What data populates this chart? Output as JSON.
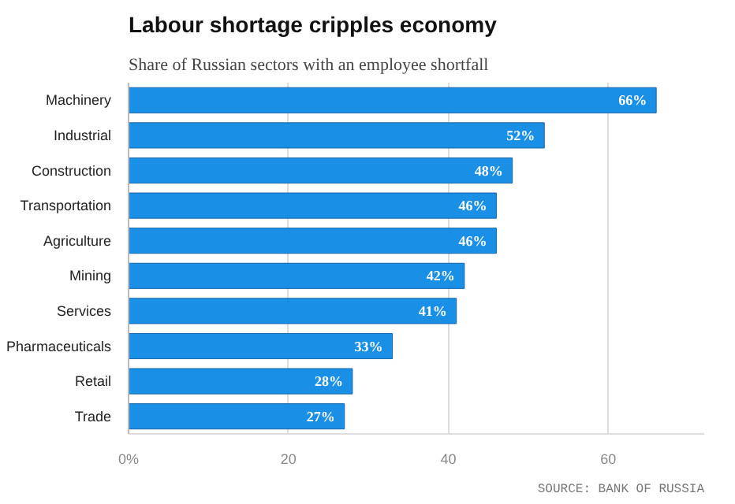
{
  "chart_data": {
    "type": "bar",
    "orientation": "horizontal",
    "title": "Labour shortage cripples economy",
    "subtitle": "Share of Russian sectors with an employee shortfall",
    "categories": [
      "Machinery",
      "Industrial",
      "Construction",
      "Transportation",
      "Agriculture",
      "Mining",
      "Services",
      "Pharmaceuticals",
      "Retail",
      "Trade"
    ],
    "values": [
      66,
      52,
      48,
      46,
      46,
      42,
      41,
      33,
      28,
      27
    ],
    "value_labels": [
      "66%",
      "52%",
      "48%",
      "46%",
      "46%",
      "42%",
      "41%",
      "33%",
      "28%",
      "27%"
    ],
    "color": "#1a8fe6",
    "xlim": [
      0,
      72
    ],
    "xticks": [
      {
        "value": 0,
        "label": "0%"
      },
      20,
      40,
      60
    ],
    "grid": "x",
    "annotations": [
      "SOURCE: BANK OF RUSSIA"
    ]
  }
}
